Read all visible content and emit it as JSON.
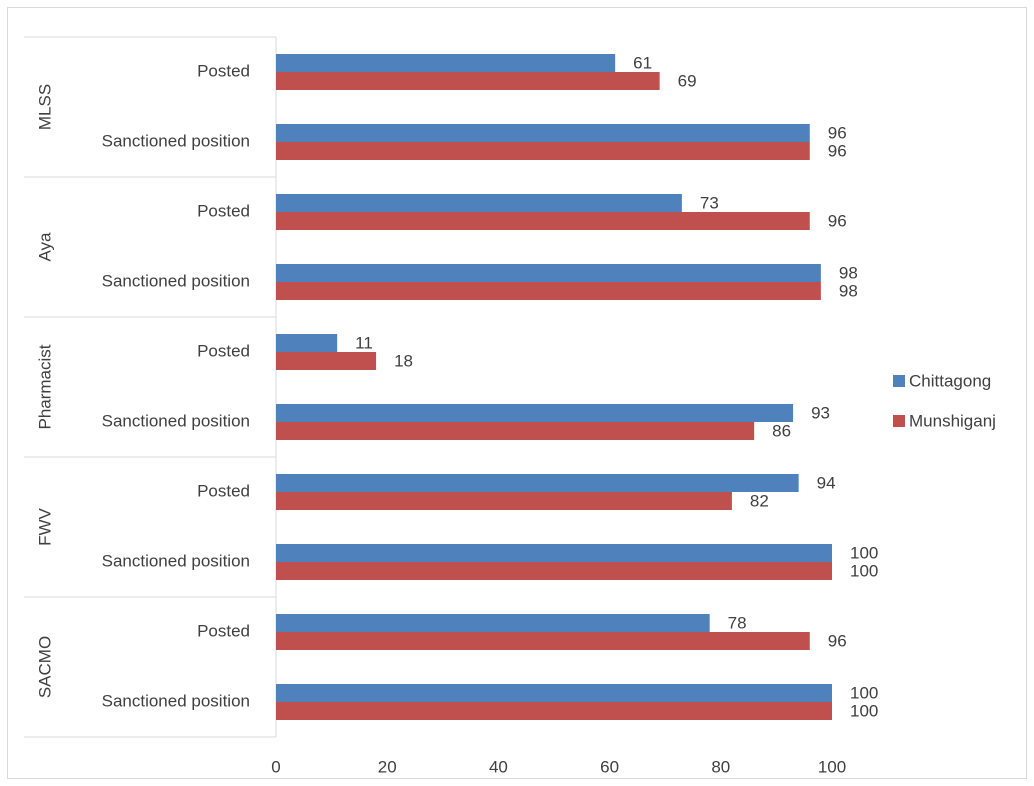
{
  "chart_data": {
    "type": "bar",
    "orientation": "horizontal",
    "title": "",
    "xlabel": "",
    "ylabel": "",
    "xlim": [
      0,
      100
    ],
    "x_ticks": [
      0,
      20,
      40,
      60,
      80,
      100
    ],
    "grid": false,
    "legend_position": "right",
    "groups": [
      {
        "name": "MLSS",
        "categories": [
          {
            "label": "Posted",
            "values": [
              61,
              69
            ]
          },
          {
            "label": "Sanctioned position",
            "values": [
              96,
              96
            ]
          }
        ]
      },
      {
        "name": "Aya",
        "categories": [
          {
            "label": "Posted",
            "values": [
              73,
              96
            ]
          },
          {
            "label": "Sanctioned position",
            "values": [
              98,
              98
            ]
          }
        ]
      },
      {
        "name": "Pharmacist",
        "categories": [
          {
            "label": "Posted",
            "values": [
              11,
              18
            ]
          },
          {
            "label": "Sanctioned position",
            "values": [
              93,
              86
            ]
          }
        ]
      },
      {
        "name": "FWV",
        "categories": [
          {
            "label": "Posted",
            "values": [
              94,
              82
            ]
          },
          {
            "label": "Sanctioned position",
            "values": [
              100,
              100
            ]
          }
        ]
      },
      {
        "name": "SACMO",
        "categories": [
          {
            "label": "Posted",
            "values": [
              78,
              96
            ]
          },
          {
            "label": "Sanctioned position",
            "values": [
              100,
              100
            ]
          }
        ]
      }
    ],
    "series": [
      {
        "name": "Chittagong",
        "color": "#4f81bd"
      },
      {
        "name": "Munshiganj",
        "color": "#c0504d"
      }
    ]
  }
}
